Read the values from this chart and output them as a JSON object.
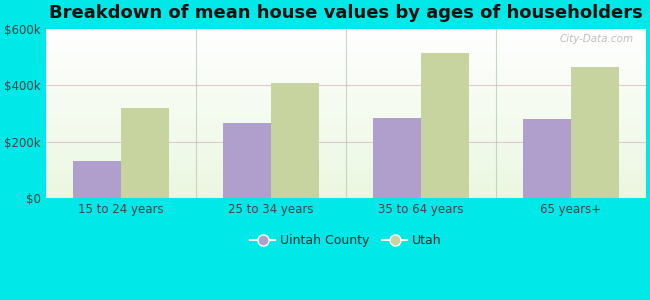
{
  "title": "Breakdown of mean house values by ages of householders",
  "categories": [
    "15 to 24 years",
    "25 to 34 years",
    "35 to 64 years",
    "65 years+"
  ],
  "series": [
    {
      "name": "Uintah County",
      "values": [
        130000,
        265000,
        285000,
        280000
      ],
      "color": "#b09fcc"
    },
    {
      "name": "Utah",
      "values": [
        320000,
        410000,
        515000,
        465000
      ],
      "color": "#c8d4a0"
    }
  ],
  "ylim": [
    0,
    600000
  ],
  "yticks": [
    0,
    200000,
    400000,
    600000
  ],
  "ytick_labels": [
    "$0",
    "$200k",
    "$400k",
    "$600k"
  ],
  "background_color": "#00e8e8",
  "title_fontsize": 13,
  "bar_width": 0.32,
  "watermark": "City-Data.com",
  "grid_color": "#d8e8d0",
  "separator_color": "#b0c8b0"
}
